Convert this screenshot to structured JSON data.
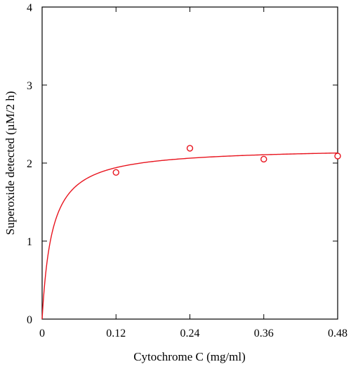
{
  "chart_data": {
    "type": "scatter",
    "title": "",
    "xlabel": "Cytochrome C (mg/ml)",
    "ylabel": "Superoxide detected (µM/2 h)",
    "xlim": [
      0,
      0.48
    ],
    "ylim": [
      0,
      4
    ],
    "x_ticks": [
      "0",
      "0.12",
      "0.24",
      "0.36",
      "0.48"
    ],
    "x_tick_values": [
      0,
      0.12,
      0.24,
      0.36,
      0.48
    ],
    "y_ticks": [
      "0",
      "1",
      "2",
      "3",
      "4"
    ],
    "y_tick_values": [
      0,
      1,
      2,
      3,
      4
    ],
    "grid": false,
    "series": [
      {
        "kind": "points",
        "marker": "open-circle",
        "color": "#e8141e",
        "x": [
          0.12,
          0.24,
          0.36,
          0.48
        ],
        "y": [
          1.88,
          2.19,
          2.05,
          2.09
        ]
      },
      {
        "kind": "fit-curve",
        "model": "hyperbolic",
        "color": "#e8141e",
        "vmax": 2.2,
        "k": 0.016
      }
    ]
  }
}
